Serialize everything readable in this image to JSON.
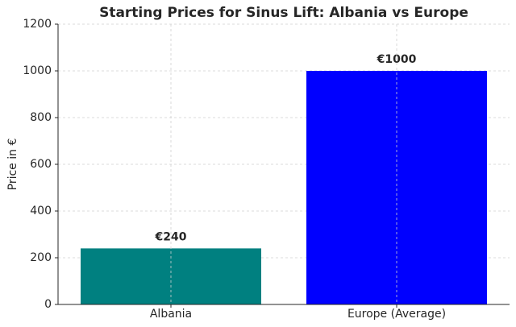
{
  "chart_data": {
    "type": "bar",
    "title": "Starting Prices for Sinus Lift: Albania vs Europe",
    "ylabel": "Price in €",
    "categories": [
      "Albania",
      "Europe (Average)"
    ],
    "values": [
      240,
      1000
    ],
    "value_labels": [
      "€240",
      "€1000"
    ],
    "colors": [
      "#008080",
      "#0000ff"
    ],
    "ylim": [
      0,
      1200
    ],
    "yticks": [
      0,
      200,
      400,
      600,
      800,
      1000,
      1200
    ],
    "grid": true
  }
}
